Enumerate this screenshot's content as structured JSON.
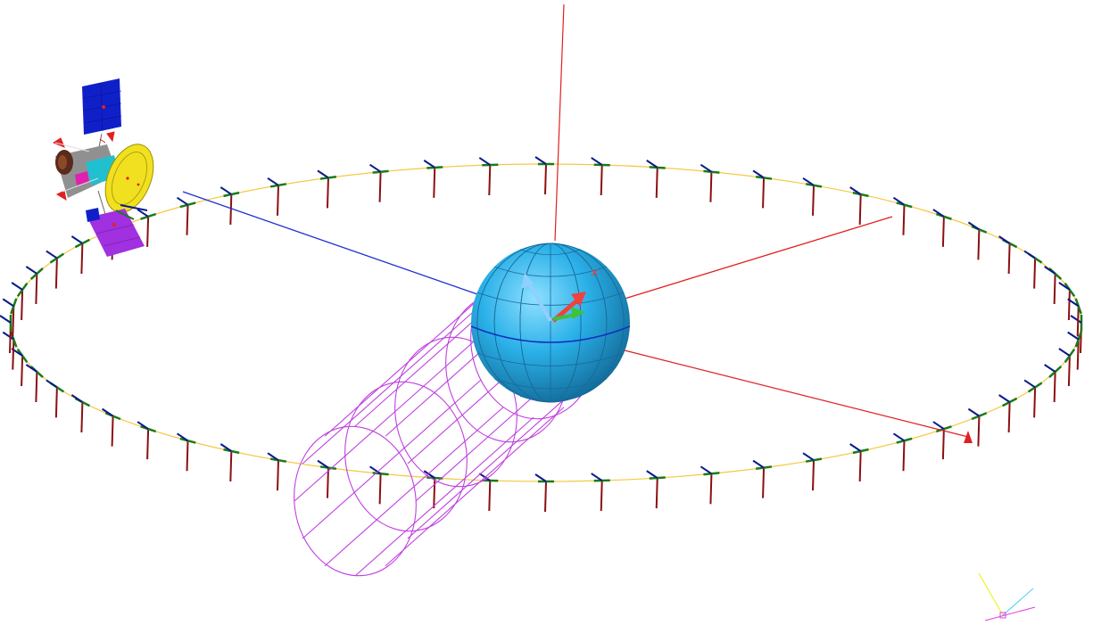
{
  "scene": {
    "background": "#ffffff",
    "orbit_color": "#f5c842",
    "marker_count": 60,
    "marker_colors": {
      "radial": "#8b1010",
      "along_track": "#1a7a1a",
      "cross_track": "#0a1a8a"
    },
    "planet": {
      "fill": "#2ab0e8",
      "highlight": "#8fe0ff",
      "shade": "#0e5f8a",
      "grid_color": "#1a6a9a",
      "equator_color": "#1030c0"
    },
    "shadow_cylinder_color": "#c040e0",
    "vector_colors": {
      "pole_axis": "#e02020",
      "sun_lines": "#e02020",
      "satellite_line": "#2030d0"
    },
    "satellite": {
      "panel_color": "#1020c8",
      "panel2_color": "#a030e0",
      "dish_color": "#f0e020",
      "body_color": "#909090",
      "bus_color": "#20c0d0"
    },
    "triad_colors": {
      "x": "#f04040",
      "y": "#40c040",
      "z": "#90d0ff"
    },
    "view_triad_colors": {
      "a": "#f0f000",
      "b": "#40d0f0",
      "c": "#e040e0"
    }
  }
}
